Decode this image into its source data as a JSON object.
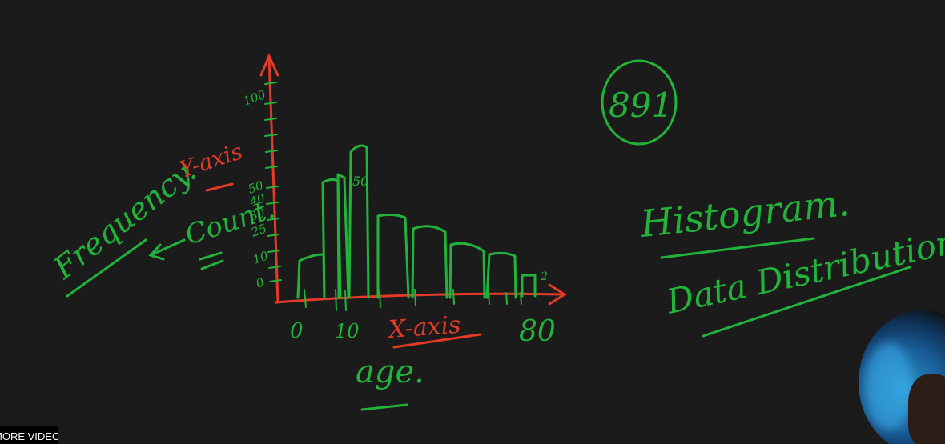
{
  "board": {
    "left_words": {
      "frequency": "Frequency.",
      "count": "Count.",
      "y_axis": "Y-axis"
    },
    "y_ticks": [
      "100",
      "50",
      "40",
      "30",
      "25",
      "10",
      "0"
    ],
    "bar_label_peak": "50",
    "bar_label_small": "2",
    "x_ticks": [
      "0",
      "10",
      "80"
    ],
    "x_axis_label": "X-axis",
    "x_axis_name": "age.",
    "circled_number": "891",
    "title_1": "Histogram.",
    "title_2": "Data Distribution."
  },
  "colors": {
    "board": "#1b1b1b",
    "green_ink": "#22b43a",
    "red_ink": "#e43a28"
  },
  "footer": {
    "more_videos": "MORE VIDEOS"
  }
}
